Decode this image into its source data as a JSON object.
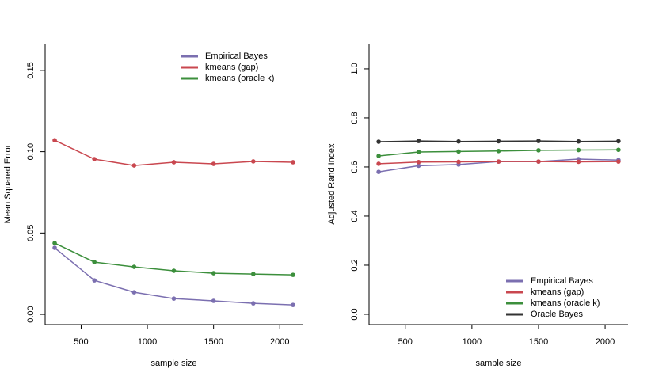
{
  "chart_data": [
    {
      "type": "line",
      "xlabel": "sample size",
      "ylabel": "Mean Squared Error",
      "legend": "top-right",
      "x": [
        300,
        600,
        900,
        1200,
        1500,
        1800,
        2100
      ],
      "series": [
        {
          "name": "Empirical Bayes",
          "color": "#7b6fb0",
          "values": [
            0.0409,
            0.0209,
            0.0136,
            0.0097,
            0.0083,
            0.0068,
            0.0058
          ]
        },
        {
          "name": "kmeans (gap)",
          "color": "#c9474f",
          "values": [
            0.107,
            0.0954,
            0.0915,
            0.0935,
            0.0925,
            0.094,
            0.0935
          ]
        },
        {
          "name": "kmeans (oracle k)",
          "color": "#3c8f3c",
          "values": [
            0.0438,
            0.0321,
            0.0292,
            0.0268,
            0.0253,
            0.0248,
            0.0243
          ]
        }
      ],
      "xlim": [
        228,
        2172
      ],
      "xticks": [
        500,
        1000,
        1500,
        2000
      ],
      "ylim": [
        -0.0063,
        0.1665
      ],
      "yticks": [
        {
          "value": 0,
          "label": "0.00"
        },
        {
          "value": 0.05,
          "label": "0.05"
        },
        {
          "value": 0.1,
          "label": "0.10"
        },
        {
          "value": 0.15,
          "label": "0.15"
        }
      ]
    },
    {
      "type": "line",
      "xlabel": "sample size",
      "ylabel": "Adjusted Rand Index",
      "legend": "bottom-right",
      "x": [
        300,
        600,
        900,
        1200,
        1500,
        1800,
        2100
      ],
      "series": [
        {
          "name": "Empirical Bayes",
          "color": "#7b6fb0",
          "values": [
            0.58,
            0.605,
            0.61,
            0.622,
            0.622,
            0.632,
            0.628
          ]
        },
        {
          "name": "kmeans (gap)",
          "color": "#c9474f",
          "values": [
            0.613,
            0.62,
            0.621,
            0.622,
            0.622,
            0.621,
            0.622
          ]
        },
        {
          "name": "kmeans (oracle k)",
          "color": "#3c8f3c",
          "values": [
            0.645,
            0.661,
            0.663,
            0.665,
            0.668,
            0.669,
            0.67
          ]
        },
        {
          "name": "Oracle Bayes",
          "color": "#333333",
          "values": [
            0.703,
            0.706,
            0.704,
            0.705,
            0.706,
            0.704,
            0.705
          ]
        }
      ],
      "xlim": [
        228,
        2172
      ],
      "xticks": [
        500,
        1000,
        1500,
        2000
      ],
      "ylim": [
        -0.042,
        1.103
      ],
      "yticks": [
        {
          "value": 0,
          "label": "0.0"
        },
        {
          "value": 0.2,
          "label": "0.2"
        },
        {
          "value": 0.4,
          "label": "0.4"
        },
        {
          "value": 0.6,
          "label": "0.6"
        },
        {
          "value": 0.8,
          "label": "0.8"
        },
        {
          "value": 1,
          "label": "1.0"
        }
      ]
    }
  ]
}
